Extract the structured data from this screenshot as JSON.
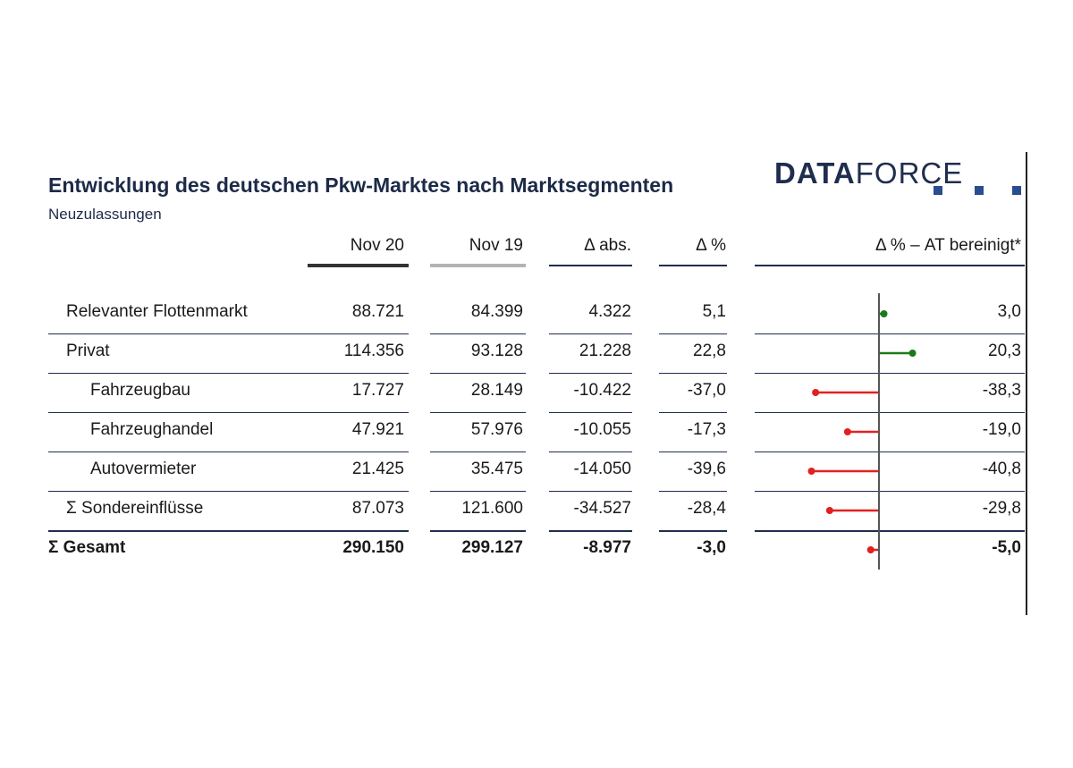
{
  "title": "Entwicklung des deutschen Pkw-Marktes nach Marktsegmenten",
  "subtitle": "Neuzulassungen",
  "logo": {
    "part1": "DATA",
    "part2": "FORCE"
  },
  "colors": {
    "positive": "#1a7a1a",
    "negative": "#e32020",
    "axis": "#555555",
    "line_dark": "#1f2d4e",
    "nov20_bar": "#333333",
    "nov19_bar": "#b3b3b3"
  },
  "headers": {
    "nov20": "Nov 20",
    "nov19": "Nov 19",
    "delta_abs": "Δ abs.",
    "delta_pct": "Δ %",
    "delta_at": "Δ % – AT bereinigt*"
  },
  "chart_data": {
    "type": "table",
    "columns": [
      "Nov 20",
      "Nov 19",
      "Δ abs.",
      "Δ %",
      "Δ % – AT bereinigt*"
    ],
    "rows": [
      {
        "label": "Relevanter Flottenmarkt",
        "nov20": "88.721",
        "nov19": "84.399",
        "delta_abs": "4.322",
        "delta_pct": "5,1",
        "delta_at": "3,0",
        "at_value": 3.0
      },
      {
        "label": "Privat",
        "nov20": "114.356",
        "nov19": "93.128",
        "delta_abs": "21.228",
        "delta_pct": "22,8",
        "delta_at": "20,3",
        "at_value": 20.3
      },
      {
        "label": "Fahrzeugbau",
        "nov20": "17.727",
        "nov19": "28.149",
        "delta_abs": "-10.422",
        "delta_pct": "-37,0",
        "delta_at": "-38,3",
        "at_value": -38.3
      },
      {
        "label": "Fahrzeughandel",
        "nov20": "47.921",
        "nov19": "57.976",
        "delta_abs": "-10.055",
        "delta_pct": "-17,3",
        "delta_at": "-19,0",
        "at_value": -19.0
      },
      {
        "label": "Autovermieter",
        "nov20": "21.425",
        "nov19": "35.475",
        "delta_abs": "-14.050",
        "delta_pct": "-39,6",
        "delta_at": "-40,8",
        "at_value": -40.8
      },
      {
        "label": "Σ Sondereinflüsse",
        "nov20": "87.073",
        "nov19": "121.600",
        "delta_abs": "-34.527",
        "delta_pct": "-28,4",
        "delta_at": "-29,8",
        "at_value": -29.8
      },
      {
        "label": "Σ Gesamt",
        "nov20": "290.150",
        "nov19": "299.127",
        "delta_abs": "-8.977",
        "delta_pct": "-3,0",
        "delta_at": "-5,0",
        "at_value": -5.0
      }
    ]
  }
}
